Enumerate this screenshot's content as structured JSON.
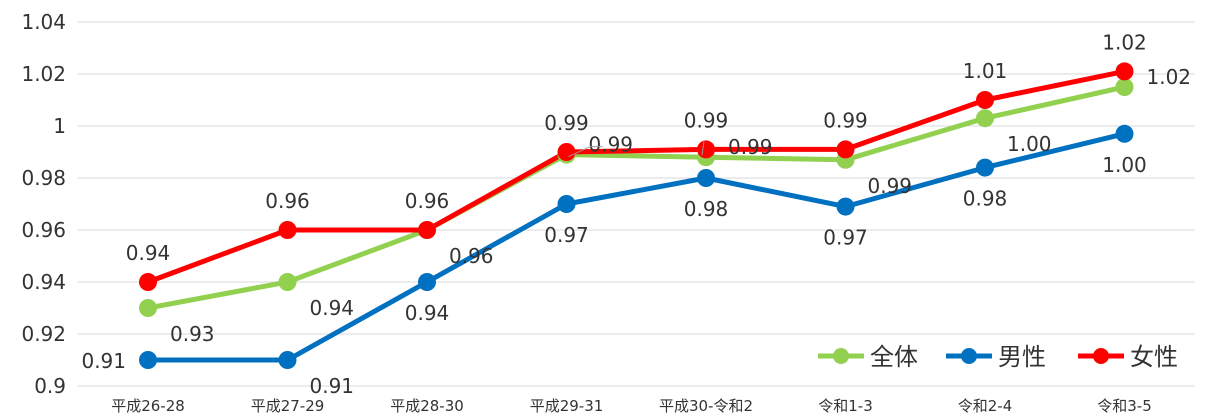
{
  "chart_data": {
    "type": "line",
    "categories": [
      "平成26-28",
      "平成27-29",
      "平成28-30",
      "平成29-31",
      "平成30-令和2",
      "令和1-3",
      "令和2-4",
      "令和3-5"
    ],
    "ylim": [
      0.9,
      1.04
    ],
    "yticks": [
      {
        "value": 0.9,
        "label": "0.9"
      },
      {
        "value": 0.92,
        "label": "0.92"
      },
      {
        "value": 0.94,
        "label": "0.94"
      },
      {
        "value": 0.96,
        "label": "0.96"
      },
      {
        "value": 0.98,
        "label": "0.98"
      },
      {
        "value": 1.0,
        "label": "1"
      },
      {
        "value": 1.02,
        "label": "1.02"
      },
      {
        "value": 1.04,
        "label": "1.04"
      }
    ],
    "grid": true,
    "legend_position": "bottom-right",
    "series": [
      {
        "name": "全体",
        "color": "#92D050",
        "values": [
          0.93,
          0.94,
          0.96,
          0.989,
          0.988,
          0.987,
          1.003,
          1.015
        ],
        "labels": [
          "0.93",
          "0.94",
          "0.96",
          "0.99",
          "0.99",
          "0.99",
          "1.00",
          "1.02"
        ],
        "label_pos": [
          "right-below",
          "right-below",
          "right-below",
          "right-above",
          "right-above",
          "right-below",
          "right-below",
          "right-above"
        ]
      },
      {
        "name": "男性",
        "color": "#0070C0",
        "values": [
          0.91,
          0.91,
          0.94,
          0.97,
          0.98,
          0.969,
          0.984,
          0.997
        ],
        "labels": [
          "0.91",
          "0.91",
          "0.94",
          "0.97",
          "0.98",
          "0.97",
          "0.98",
          "1.00"
        ],
        "label_pos": [
          "left",
          "right-below",
          "below",
          "below",
          "below",
          "below",
          "below",
          "below"
        ]
      },
      {
        "name": "女性",
        "color": "#FF0000",
        "values": [
          0.94,
          0.96,
          0.96,
          0.99,
          0.991,
          0.991,
          1.01,
          1.021
        ],
        "labels": [
          "0.94",
          "0.96",
          "0.96",
          "0.99",
          "0.99",
          "0.99",
          "1.01",
          "1.02"
        ],
        "label_pos": [
          "above",
          "above",
          "above",
          "above",
          "above",
          "above",
          "above",
          "above"
        ]
      }
    ]
  }
}
